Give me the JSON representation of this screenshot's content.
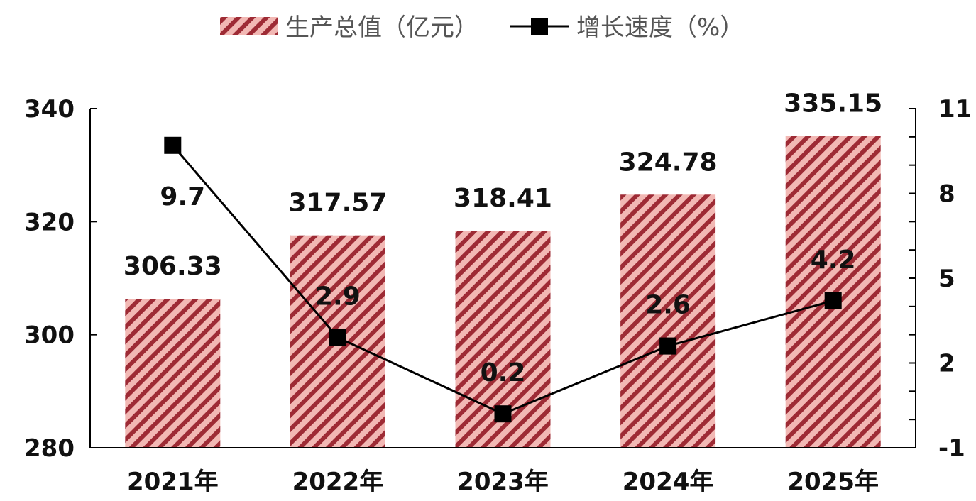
{
  "chart_data": {
    "type": "bar",
    "categories": [
      "2021年",
      "2022年",
      "2023年",
      "2024年",
      "2025年"
    ],
    "series": [
      {
        "name": "生产总值（亿元）",
        "type": "bar",
        "axis": "left",
        "values": [
          306.33,
          317.57,
          318.41,
          324.78,
          335.15
        ]
      },
      {
        "name": "增长速度（%）",
        "type": "line",
        "axis": "right",
        "values": [
          9.7,
          2.9,
          0.2,
          2.6,
          4.2
        ]
      }
    ],
    "data_labels": {
      "bars": [
        "306.33",
        "317.57",
        "318.41",
        "324.78",
        "335.15"
      ],
      "line": [
        "9.7",
        "2.9",
        "0.2",
        "2.6",
        "4.2"
      ]
    },
    "y_left": {
      "ylim": [
        280,
        340
      ],
      "ticks": [
        "280",
        "300",
        "320",
        "340"
      ]
    },
    "y_right": {
      "ylim": [
        -1,
        11
      ],
      "ticks": [
        "-1",
        "2",
        "5",
        "8",
        "11"
      ]
    },
    "legend": {
      "position": "top-center"
    },
    "grid": false,
    "colors": {
      "bar_fill": "#f2b8b4",
      "bar_stripe": "#9e2b35",
      "line": "#000000",
      "marker": "#000000"
    }
  }
}
